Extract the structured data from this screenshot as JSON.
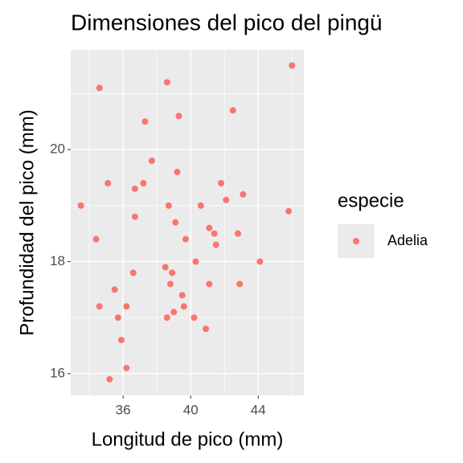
{
  "chart_data": {
    "type": "scatter",
    "title": "Dimensiones del pico del pingü",
    "x_label": "Longitud de pico (mm)",
    "y_label": "Profundidad del pico (mm)",
    "legend_title": "especie",
    "legend_position": "right",
    "grid": true,
    "xlim": [
      32.9,
      46.7
    ],
    "xticks": [
      36,
      40,
      44
    ],
    "ylim": [
      15.61,
      21.78
    ],
    "yticks": [
      16,
      18,
      20
    ],
    "series": [
      {
        "name": "Adelia",
        "color": "#F8766D",
        "x": [
          46.0,
          34.6,
          38.6,
          42.5,
          37.3,
          39.3,
          37.7,
          39.2,
          35.1,
          37.2,
          36.7,
          41.8,
          43.1,
          42.1,
          33.5,
          38.7,
          40.6,
          45.8,
          36.7,
          39.1,
          41.1,
          41.4,
          42.8,
          34.4,
          39.7,
          41.5,
          44.1,
          40.3,
          38.5,
          36.6,
          38.9,
          38.8,
          41.1,
          42.9,
          35.5,
          39.5,
          34.6,
          36.2,
          39.6,
          39.0,
          35.7,
          38.6,
          40.2,
          40.9,
          35.9,
          36.2,
          35.2
        ],
        "values": [
          21.5,
          21.1,
          21.2,
          20.7,
          20.5,
          20.6,
          19.8,
          19.6,
          19.4,
          19.4,
          19.3,
          19.4,
          19.2,
          19.1,
          19.0,
          19.0,
          19.0,
          18.9,
          18.8,
          18.7,
          18.6,
          18.5,
          18.5,
          18.4,
          18.4,
          18.3,
          18.0,
          18.0,
          17.9,
          17.8,
          17.8,
          17.6,
          17.6,
          17.6,
          17.5,
          17.4,
          17.2,
          17.2,
          17.2,
          17.1,
          17.0,
          17.0,
          17.0,
          16.8,
          16.6,
          16.1,
          15.9
        ]
      }
    ]
  }
}
